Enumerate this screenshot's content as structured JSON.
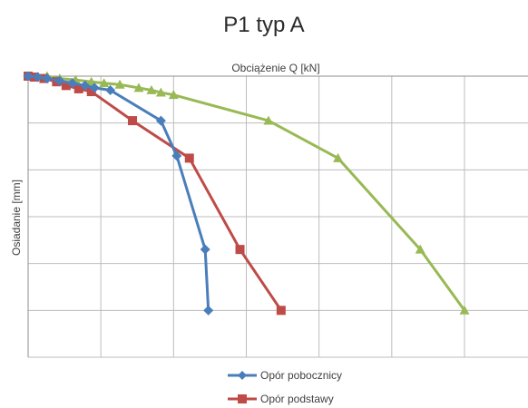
{
  "chart_data": {
    "type": "line",
    "title": "P1 typ A",
    "xlabel": "Obciążenie Q [kN]",
    "ylabel": "Osiadanie [mm]",
    "x_axis_position": "top",
    "y_axis_inverted": true,
    "xlim": [
      0,
      1.38
    ],
    "ylim": [
      0,
      6
    ],
    "grid": true,
    "tick_labels_shown": false,
    "legend_position": "bottom",
    "series": [
      {
        "name": "Opór pobocznicy",
        "color": "#4a7ebb",
        "marker": "diamond",
        "points": [
          [
            0.0,
            0.0
          ],
          [
            0.03,
            0.02
          ],
          [
            0.06,
            0.05
          ],
          [
            0.1,
            0.1
          ],
          [
            0.14,
            0.15
          ],
          [
            0.18,
            0.2
          ],
          [
            0.21,
            0.25
          ],
          [
            0.26,
            0.3
          ],
          [
            0.42,
            0.95
          ],
          [
            0.47,
            1.7
          ],
          [
            0.56,
            3.7
          ],
          [
            0.57,
            5.0
          ]
        ]
      },
      {
        "name": "Opór podstawy",
        "color": "#be4b48",
        "marker": "square",
        "points": [
          [
            0.0,
            0.0
          ],
          [
            0.02,
            0.02
          ],
          [
            0.05,
            0.05
          ],
          [
            0.09,
            0.12
          ],
          [
            0.12,
            0.2
          ],
          [
            0.16,
            0.27
          ],
          [
            0.2,
            0.33
          ],
          [
            0.33,
            0.95
          ],
          [
            0.51,
            1.75
          ],
          [
            0.67,
            3.7
          ],
          [
            0.8,
            5.0
          ]
        ]
      },
      {
        "name": "",
        "color": "#98b954",
        "marker": "triangle",
        "points": [
          [
            0.06,
            0.0
          ],
          [
            0.1,
            0.05
          ],
          [
            0.15,
            0.08
          ],
          [
            0.2,
            0.12
          ],
          [
            0.24,
            0.15
          ],
          [
            0.29,
            0.18
          ],
          [
            0.35,
            0.25
          ],
          [
            0.39,
            0.3
          ],
          [
            0.42,
            0.35
          ],
          [
            0.46,
            0.4
          ],
          [
            0.76,
            0.95
          ],
          [
            0.98,
            1.75
          ],
          [
            1.24,
            3.7
          ],
          [
            1.38,
            5.0
          ]
        ]
      }
    ]
  }
}
